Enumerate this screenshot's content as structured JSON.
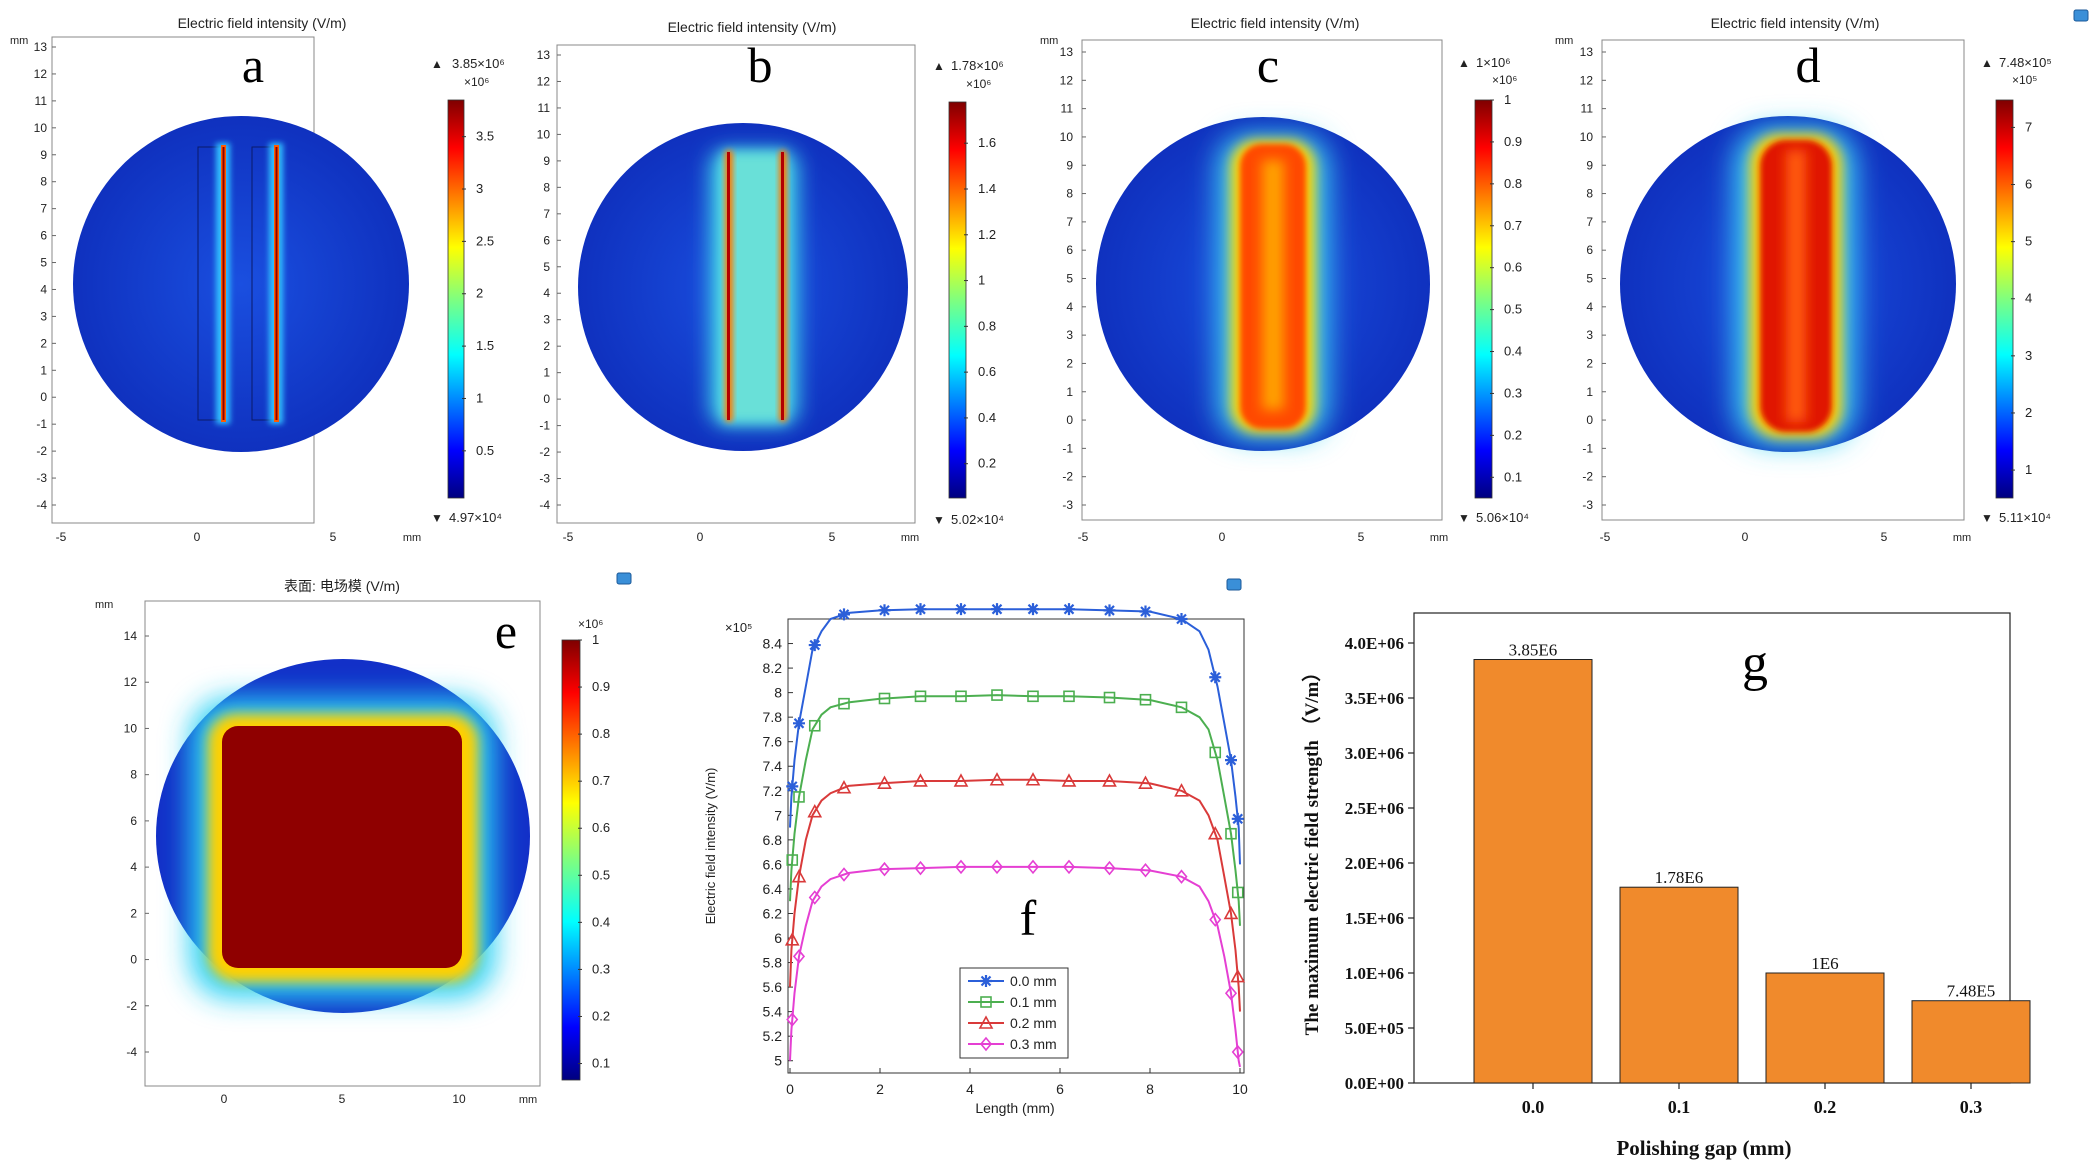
{
  "chart_data": [
    {
      "id": "a",
      "type": "heatmap",
      "title": "Electric field intensity (V/m)",
      "panel_letter": "a",
      "unit": "mm",
      "xticks": [
        "-5",
        "0",
        "5"
      ],
      "yticks": [
        "13",
        "12",
        "11",
        "10",
        "9",
        "8",
        "7",
        "6",
        "5",
        "4",
        "3",
        "2",
        "1",
        "0",
        "-1",
        "-2",
        "-3",
        "-4"
      ],
      "color_max": 3850000,
      "color_min": 49700,
      "color_max_label": "3.85×10⁶",
      "color_min_label": "4.97×10⁴",
      "color_multiplier": "×10⁶",
      "colorbar_ticks": [
        "3.5",
        "3",
        "2.5",
        "2",
        "1.5",
        "1",
        "0.5"
      ],
      "field_pattern": "two thin high-field vertical strips from y=0 to y=10 mm at x≈1 and x≈3 mm"
    },
    {
      "id": "b",
      "type": "heatmap",
      "title": "Electric field intensity (V/m)",
      "panel_letter": "b",
      "unit": "mm",
      "xticks": [
        "-5",
        "0",
        "5"
      ],
      "yticks": [
        "13",
        "12",
        "11",
        "10",
        "9",
        "8",
        "7",
        "6",
        "5",
        "4",
        "3",
        "2",
        "1",
        "0",
        "-1",
        "-2",
        "-3",
        "-4"
      ],
      "color_max": 1780000,
      "color_min": 50200,
      "color_max_label": "1.78×10⁶",
      "color_min_label": "5.02×10⁴",
      "color_multiplier": "×10⁶",
      "colorbar_ticks": [
        "1.6",
        "1.4",
        "1.2",
        "1",
        "0.8",
        "0.6",
        "0.4",
        "0.2"
      ]
    },
    {
      "id": "c",
      "type": "heatmap",
      "title": "Electric field intensity (V/m)",
      "panel_letter": "c",
      "unit": "mm",
      "xticks": [
        "-5",
        "0",
        "5"
      ],
      "yticks": [
        "13",
        "12",
        "11",
        "10",
        "9",
        "8",
        "7",
        "6",
        "5",
        "4",
        "3",
        "2",
        "1",
        "0",
        "-1",
        "-2",
        "-3"
      ],
      "color_max": 1000000,
      "color_min": 50600,
      "color_max_label": "1×10⁶",
      "color_min_label": "5.06×10⁴",
      "color_multiplier": "×10⁶",
      "colorbar_ticks": [
        "1",
        "0.9",
        "0.8",
        "0.7",
        "0.6",
        "0.5",
        "0.4",
        "0.3",
        "0.2",
        "0.1"
      ]
    },
    {
      "id": "d",
      "type": "heatmap",
      "title": "Electric field intensity (V/m)",
      "panel_letter": "d",
      "unit": "mm",
      "xticks": [
        "-5",
        "0",
        "5"
      ],
      "yticks": [
        "13",
        "12",
        "11",
        "10",
        "9",
        "8",
        "7",
        "6",
        "5",
        "4",
        "3",
        "2",
        "1",
        "0",
        "-1",
        "-2",
        "-3"
      ],
      "color_max": 748000,
      "color_min": 51100,
      "color_max_label": "7.48×10⁵",
      "color_min_label": "5.11×10⁴",
      "color_multiplier": "×10⁵",
      "colorbar_ticks": [
        "7",
        "6",
        "5",
        "4",
        "3",
        "2",
        "1"
      ]
    },
    {
      "id": "e",
      "type": "heatmap",
      "title": "表面: 电场模 (V/m)",
      "panel_letter": "e",
      "unit": "mm",
      "xticks": [
        "0",
        "5",
        "10"
      ],
      "yticks": [
        "14",
        "12",
        "10",
        "8",
        "6",
        "4",
        "2",
        "0",
        "-2",
        "-4"
      ],
      "color_multiplier": "×10⁶",
      "colorbar_ticks": [
        "1",
        "0.9",
        "0.8",
        "0.7",
        "0.6",
        "0.5",
        "0.4",
        "0.3",
        "0.2",
        "0.1"
      ]
    },
    {
      "id": "f",
      "type": "line",
      "panel_letter": "f",
      "ylabel": "Electric field intensity (V/m)",
      "xlabel": "Length  (mm)",
      "y_multiplier": "×10⁵",
      "xlim": [
        0,
        10
      ],
      "ylim": [
        4.9,
        8.6
      ],
      "xticks": [
        "0",
        "2",
        "4",
        "6",
        "8",
        "10"
      ],
      "yticks": [
        "5",
        "5.2",
        "5.4",
        "5.6",
        "5.8",
        "6",
        "6.2",
        "6.4",
        "6.6",
        "6.8",
        "7",
        "7.2",
        "7.4",
        "7.6",
        "7.8",
        "8",
        "8.2",
        "8.4"
      ],
      "x": [
        0,
        0.03,
        0.1,
        0.2,
        0.35,
        0.5,
        0.7,
        0.9,
        1.3,
        2.0,
        2.9,
        3.8,
        4.6,
        5.4,
        6.2,
        7.1,
        8.0,
        8.7,
        9.1,
        9.3,
        9.5,
        9.65,
        9.8,
        9.9,
        9.97,
        10
      ],
      "series": [
        {
          "name": "0.0 mm",
          "marker": "star",
          "color": "#2b5fd9",
          "values": [
            6.9,
            7.15,
            7.45,
            7.75,
            8.05,
            8.35,
            8.5,
            8.6,
            8.65,
            8.67,
            8.68,
            8.68,
            8.68,
            8.68,
            8.68,
            8.67,
            8.66,
            8.6,
            8.5,
            8.35,
            8.05,
            7.75,
            7.45,
            7.15,
            6.9,
            6.6
          ]
        },
        {
          "name": "0.1 mm",
          "marker": "square",
          "color": "#4caf50",
          "values": [
            6.3,
            6.55,
            6.85,
            7.15,
            7.45,
            7.7,
            7.82,
            7.88,
            7.92,
            7.95,
            7.97,
            7.97,
            7.98,
            7.97,
            7.97,
            7.96,
            7.94,
            7.88,
            7.8,
            7.7,
            7.45,
            7.15,
            6.85,
            6.55,
            6.3,
            6.1
          ]
        },
        {
          "name": "0.2 mm",
          "marker": "triangle",
          "color": "#d93a3a",
          "values": [
            5.6,
            5.9,
            6.2,
            6.5,
            6.8,
            7.0,
            7.12,
            7.18,
            7.24,
            7.26,
            7.28,
            7.28,
            7.29,
            7.29,
            7.28,
            7.28,
            7.26,
            7.2,
            7.12,
            7.0,
            6.8,
            6.5,
            6.2,
            5.9,
            5.6,
            5.4
          ]
        },
        {
          "name": "0.3 mm",
          "marker": "diamond",
          "color": "#e53fd3",
          "values": [
            5.0,
            5.25,
            5.55,
            5.85,
            6.1,
            6.3,
            6.42,
            6.48,
            6.53,
            6.56,
            6.57,
            6.58,
            6.58,
            6.58,
            6.58,
            6.57,
            6.55,
            6.5,
            6.42,
            6.3,
            6.1,
            5.85,
            5.55,
            5.25,
            5.0,
            4.95
          ]
        }
      ],
      "marker_x": [
        0.05,
        0.2,
        0.55,
        1.2,
        2.1,
        2.9,
        3.8,
        4.6,
        5.4,
        6.2,
        7.1,
        7.9,
        8.7,
        9.45,
        9.8,
        9.95
      ],
      "legend_position": "bottom-center"
    },
    {
      "id": "g",
      "type": "bar",
      "panel_letter": "g",
      "ylabel": "The maximum electric field strength （V/m）",
      "xlabel": "Polishing gap (mm)",
      "categories": [
        "0.0",
        "0.1",
        "0.2",
        "0.3"
      ],
      "values": [
        3850000,
        1780000,
        1000000,
        748000
      ],
      "data_labels": [
        "3.85E6",
        "1.78E6",
        "1E6",
        "7.48E5"
      ],
      "ylim": [
        0,
        4000000
      ],
      "yticks": [
        "0.0E+00",
        "5.0E+05",
        "1.0E+06",
        "1.5E+06",
        "2.0E+06",
        "2.5E+06",
        "3.0E+06",
        "3.5E+06",
        "4.0E+06"
      ],
      "bar_color": "#f08a2c"
    }
  ]
}
